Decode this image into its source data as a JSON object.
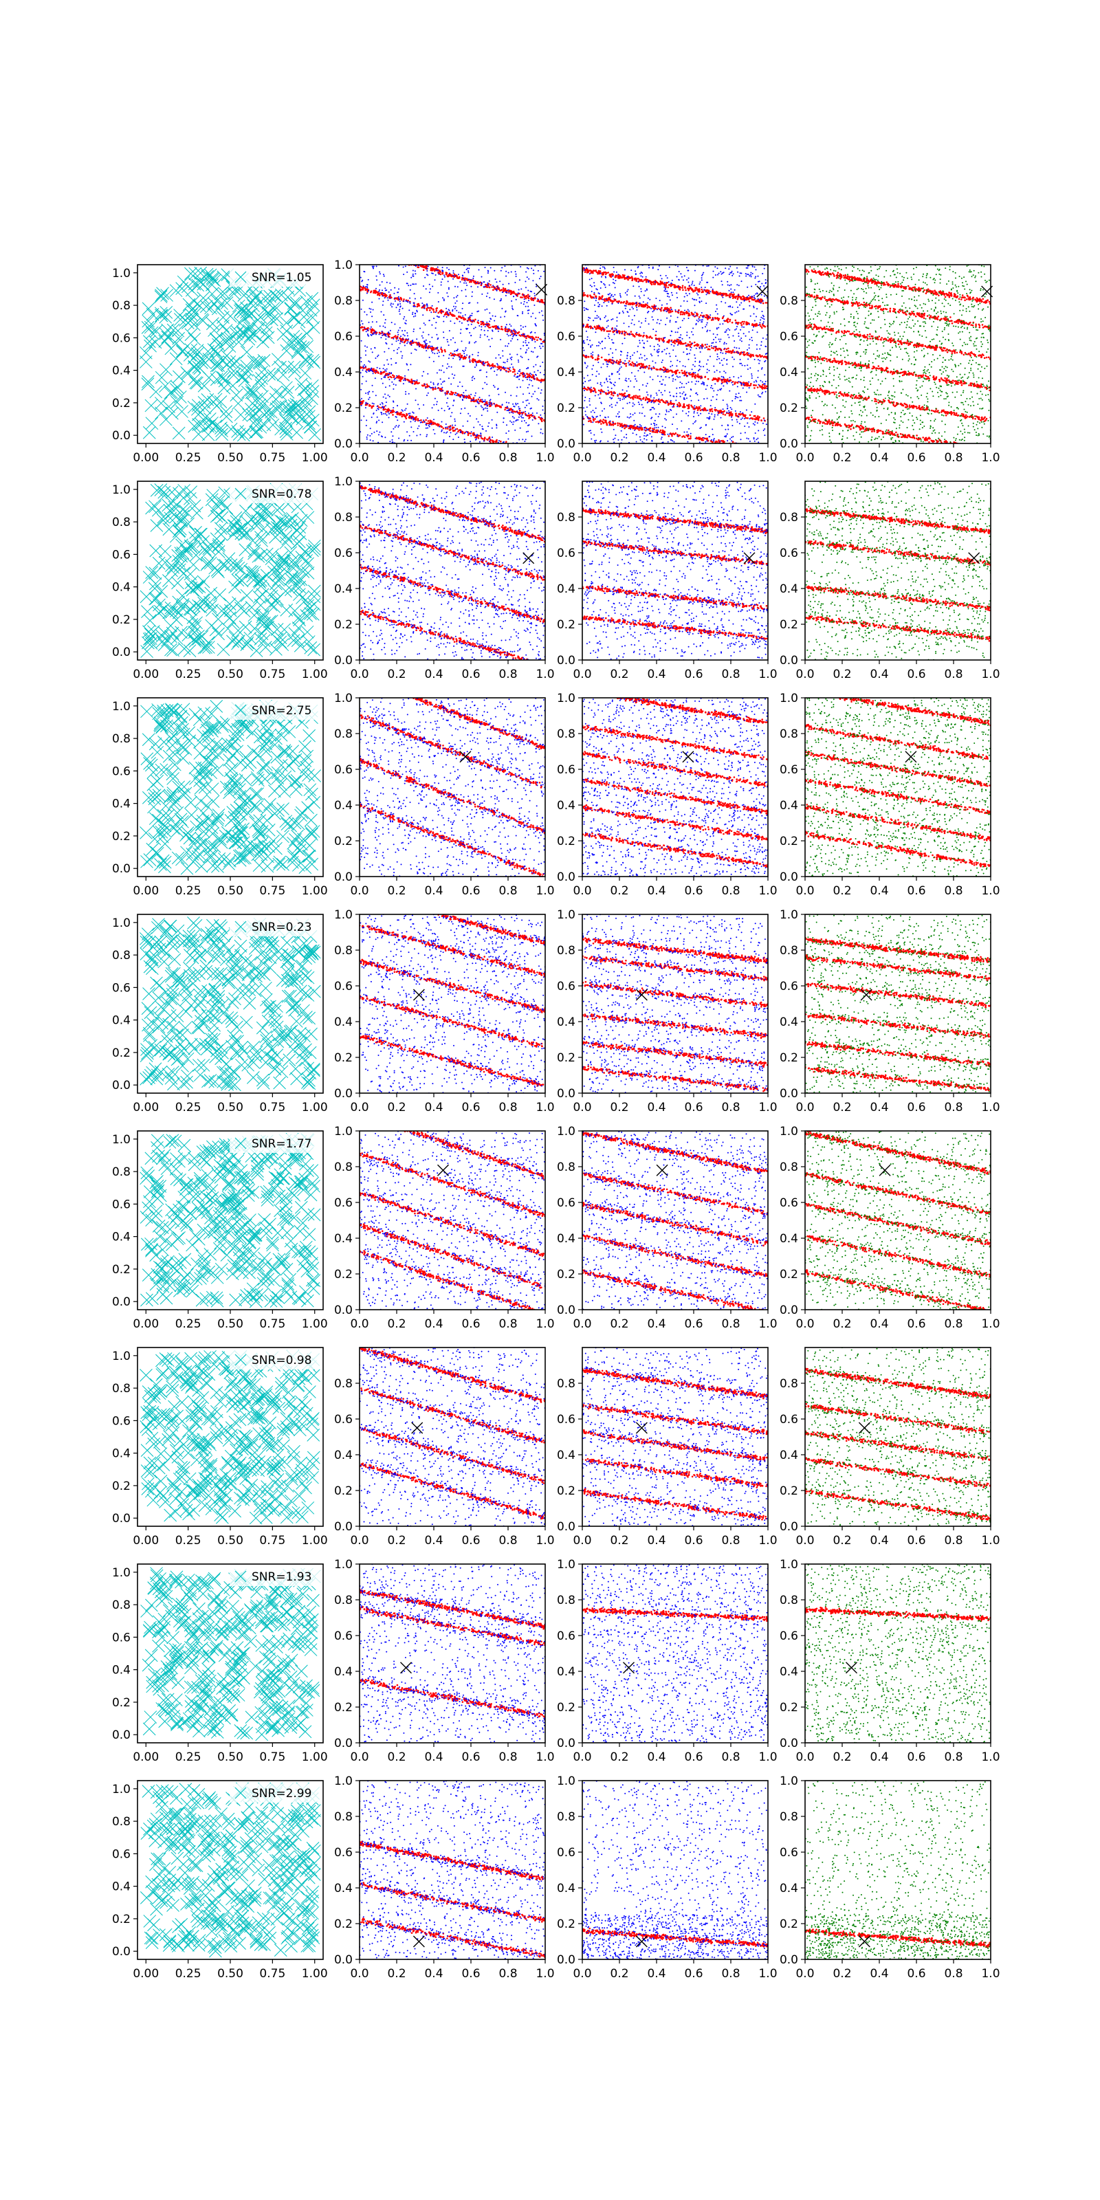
{
  "figure": {
    "layout": {
      "rows": 8,
      "cols": 4
    },
    "colors": {
      "candidates": "#00bfbf",
      "signal": "#ff0000",
      "noise_blue": "#0000ff",
      "noise_green": "#008000",
      "marker": "#000000"
    }
  },
  "chart_data": [
    {
      "type": "scatter",
      "column": "candidates",
      "legend": "SNR=1.05",
      "xlim": [
        -0.05,
        1.05
      ],
      "ylim": [
        -0.05,
        1.05
      ],
      "xticks": [
        "0.00",
        "0.25",
        "0.50",
        "0.75",
        "1.00"
      ],
      "yticks": [
        "0.0",
        "0.2",
        "0.4",
        "0.6",
        "0.8",
        "1.0"
      ],
      "marker": "x",
      "approx_point_count": 400
    },
    {
      "type": "scatter",
      "column": "signal-vs-noise",
      "noise_color": "blue",
      "xlim": [
        0,
        1
      ],
      "ylim": [
        0,
        1
      ],
      "xticks": [
        "0.0",
        "0.2",
        "0.4",
        "0.6",
        "0.8",
        "1.0"
      ],
      "yticks": [
        "0.0",
        "0.2",
        "0.4",
        "0.6",
        "0.8",
        "1.0"
      ],
      "truth": [
        0.98,
        0.86
      ],
      "slope": -0.3,
      "bands": [
        0.94,
        0.72,
        0.5,
        0.28,
        0.08
      ],
      "noise": "uniform+bands"
    },
    {
      "type": "scatter",
      "column": "signal-vs-noise",
      "noise_color": "blue",
      "xlim": [
        0,
        1
      ],
      "ylim": [
        0,
        1
      ],
      "xticks": [
        "0.0",
        "0.2",
        "0.4",
        "0.6",
        "0.8",
        "1.0"
      ],
      "yticks": [
        "0.0",
        "0.2",
        "0.4",
        "0.6",
        "0.8"
      ],
      "truth": [
        0.97,
        0.85
      ],
      "slope": -0.18,
      "bands": [
        0.88,
        0.74,
        0.57,
        0.4,
        0.22,
        0.05
      ],
      "noise": "uniform"
    },
    {
      "type": "scatter",
      "column": "signal-vs-noise",
      "noise_color": "green",
      "xlim": [
        0,
        1
      ],
      "ylim": [
        0,
        1
      ],
      "xticks": [
        "0.0",
        "0.2",
        "0.4",
        "0.6",
        "0.8",
        "1.0"
      ],
      "yticks": [
        "0.0",
        "0.2",
        "0.4",
        "0.6",
        "0.8"
      ],
      "truth": [
        0.98,
        0.85
      ],
      "slope": -0.18,
      "bands": [
        0.88,
        0.74,
        0.57,
        0.4,
        0.22,
        0.05
      ],
      "noise": "uniform"
    },
    {
      "type": "scatter",
      "column": "candidates",
      "legend": "SNR=0.78",
      "xlim": [
        -0.05,
        1.05
      ],
      "ylim": [
        -0.05,
        1.05
      ],
      "xticks": [
        "0.00",
        "0.25",
        "0.50",
        "0.75",
        "1.00"
      ],
      "yticks": [
        "0.0",
        "0.2",
        "0.4",
        "0.6",
        "0.8",
        "1.0"
      ],
      "marker": "x",
      "approx_point_count": 400
    },
    {
      "type": "scatter",
      "column": "signal-vs-noise",
      "noise_color": "blue",
      "xlim": [
        0,
        1
      ],
      "ylim": [
        0,
        1
      ],
      "xticks": [
        "0.0",
        "0.2",
        "0.4",
        "0.6",
        "0.8",
        "1.0"
      ],
      "yticks": [
        "0.0",
        "0.2",
        "0.4",
        "0.6",
        "0.8",
        "1.0"
      ],
      "truth": [
        0.91,
        0.57
      ],
      "slope": -0.3,
      "bands": [
        0.82,
        0.6,
        0.37,
        0.12
      ],
      "noise": "uniform+bands"
    },
    {
      "type": "scatter",
      "column": "signal-vs-noise",
      "noise_color": "blue",
      "xlim": [
        0,
        1
      ],
      "ylim": [
        0,
        1
      ],
      "xticks": [
        "0.0",
        "0.2",
        "0.4",
        "0.6",
        "0.8",
        "1.0"
      ],
      "yticks": [
        "0.0",
        "0.2",
        "0.4",
        "0.6",
        "0.8"
      ],
      "truth": [
        0.9,
        0.57
      ],
      "slope": -0.12,
      "bands": [
        0.78,
        0.6,
        0.35,
        0.18
      ],
      "noise": "uniform+bands"
    },
    {
      "type": "scatter",
      "column": "signal-vs-noise",
      "noise_color": "green",
      "xlim": [
        0,
        1
      ],
      "ylim": [
        0,
        1
      ],
      "xticks": [
        "0.0",
        "0.2",
        "0.4",
        "0.6",
        "0.8",
        "1.0"
      ],
      "yticks": [
        "0.0",
        "0.2",
        "0.4",
        "0.6",
        "0.8"
      ],
      "truth": [
        0.91,
        0.57
      ],
      "slope": -0.12,
      "bands": [
        0.78,
        0.6,
        0.35,
        0.18
      ],
      "noise": "uniform+bands"
    },
    {
      "type": "scatter",
      "column": "candidates",
      "legend": "SNR=2.75",
      "xlim": [
        -0.05,
        1.05
      ],
      "ylim": [
        -0.05,
        1.05
      ],
      "xticks": [
        "0.00",
        "0.25",
        "0.50",
        "0.75",
        "1.00"
      ],
      "yticks": [
        "0.0",
        "0.2",
        "0.4",
        "0.6",
        "0.8",
        "1.0"
      ],
      "marker": "x",
      "approx_point_count": 400
    },
    {
      "type": "scatter",
      "column": "signal-vs-noise",
      "noise_color": "blue",
      "xlim": [
        0,
        1
      ],
      "ylim": [
        0,
        1
      ],
      "xticks": [
        "0.0",
        "0.2",
        "0.4",
        "0.6",
        "0.8",
        "1.0"
      ],
      "yticks": [
        "0.0",
        "0.2",
        "0.4",
        "0.6",
        "0.8",
        "1.0"
      ],
      "truth": [
        0.57,
        0.67
      ],
      "slope": -0.4,
      "bands": [
        0.92,
        0.7,
        0.45,
        0.2
      ],
      "noise": "uniform+bands"
    },
    {
      "type": "scatter",
      "column": "signal-vs-noise",
      "noise_color": "blue",
      "xlim": [
        0,
        1
      ],
      "ylim": [
        0,
        1
      ],
      "xticks": [
        "0.0",
        "0.2",
        "0.4",
        "0.6",
        "0.8",
        "1.0"
      ],
      "yticks": [
        "0.0",
        "0.2",
        "0.4",
        "0.6",
        "0.8",
        "1.0"
      ],
      "truth": [
        0.57,
        0.67
      ],
      "slope": -0.18,
      "bands": [
        0.95,
        0.75,
        0.6,
        0.45,
        0.3,
        0.15
      ],
      "noise": "uniform"
    },
    {
      "type": "scatter",
      "column": "signal-vs-noise",
      "noise_color": "green",
      "xlim": [
        0,
        1
      ],
      "ylim": [
        0,
        1
      ],
      "xticks": [
        "0.0",
        "0.2",
        "0.4",
        "0.6",
        "0.8",
        "1.0"
      ],
      "yticks": [
        "0.0",
        "0.2",
        "0.4",
        "0.6",
        "0.8",
        "1.0"
      ],
      "truth": [
        0.57,
        0.67
      ],
      "slope": -0.18,
      "bands": [
        0.95,
        0.75,
        0.6,
        0.45,
        0.3,
        0.15
      ],
      "noise": "uniform"
    },
    {
      "type": "scatter",
      "column": "candidates",
      "legend": "SNR=0.23",
      "xlim": [
        -0.05,
        1.05
      ],
      "ylim": [
        -0.05,
        1.05
      ],
      "xticks": [
        "0.00",
        "0.25",
        "0.50",
        "0.75",
        "1.00"
      ],
      "yticks": [
        "0.0",
        "0.2",
        "0.4",
        "0.6",
        "0.8",
        "1.0"
      ],
      "marker": "x",
      "approx_point_count": 400
    },
    {
      "type": "scatter",
      "column": "signal-vs-noise",
      "noise_color": "blue",
      "xlim": [
        0,
        1
      ],
      "ylim": [
        0,
        1
      ],
      "xticks": [
        "0.0",
        "0.2",
        "0.4",
        "0.6",
        "0.8",
        "1.0"
      ],
      "yticks": [
        "0.0",
        "0.2",
        "0.4",
        "0.6",
        "0.8",
        "1.0"
      ],
      "truth": [
        0.32,
        0.55
      ],
      "slope": -0.28,
      "bands": [
        0.98,
        0.8,
        0.6,
        0.4,
        0.18
      ],
      "noise": "uniform+bands"
    },
    {
      "type": "scatter",
      "column": "signal-vs-noise",
      "noise_color": "blue",
      "xlim": [
        0,
        1
      ],
      "ylim": [
        0,
        1
      ],
      "xticks": [
        "0.0",
        "0.2",
        "0.4",
        "0.6",
        "0.8",
        "1.0"
      ],
      "yticks": [
        "0.0",
        "0.2",
        "0.4",
        "0.6",
        "0.8",
        "1.0"
      ],
      "truth": [
        0.32,
        0.55
      ],
      "slope": -0.12,
      "bands": [
        0.8,
        0.7,
        0.55,
        0.38,
        0.22,
        0.08
      ],
      "noise": "uniform+bands"
    },
    {
      "type": "scatter",
      "column": "signal-vs-noise",
      "noise_color": "green",
      "xlim": [
        0,
        1
      ],
      "ylim": [
        0,
        1
      ],
      "xticks": [
        "0.0",
        "0.2",
        "0.4",
        "0.6",
        "0.8",
        "1.0"
      ],
      "yticks": [
        "0.0",
        "0.2",
        "0.4",
        "0.6",
        "0.8",
        "1.0"
      ],
      "truth": [
        0.33,
        0.55
      ],
      "slope": -0.12,
      "bands": [
        0.8,
        0.7,
        0.55,
        0.38,
        0.22,
        0.08
      ],
      "noise": "uniform+bands"
    },
    {
      "type": "scatter",
      "column": "candidates",
      "legend": "SNR=1.77",
      "xlim": [
        -0.05,
        1.05
      ],
      "ylim": [
        -0.05,
        1.05
      ],
      "xticks": [
        "0.00",
        "0.25",
        "0.50",
        "0.75",
        "1.00"
      ],
      "yticks": [
        "0.0",
        "0.2",
        "0.4",
        "0.6",
        "0.8",
        "1.0"
      ],
      "marker": "x",
      "approx_point_count": 400
    },
    {
      "type": "scatter",
      "column": "signal-vs-noise",
      "noise_color": "blue",
      "xlim": [
        0,
        1
      ],
      "ylim": [
        0,
        1
      ],
      "xticks": [
        "0.0",
        "0.2",
        "0.4",
        "0.6",
        "0.8",
        "1.0"
      ],
      "yticks": [
        "0.0",
        "0.2",
        "0.4",
        "0.6",
        "0.8",
        "1.0"
      ],
      "truth": [
        0.45,
        0.78
      ],
      "slope": -0.35,
      "bands": [
        0.92,
        0.7,
        0.48,
        0.3,
        0.15
      ],
      "noise": "uniform+bands"
    },
    {
      "type": "scatter",
      "column": "signal-vs-noise",
      "noise_color": "blue",
      "xlim": [
        0,
        1
      ],
      "ylim": [
        0,
        1
      ],
      "xticks": [
        "0.0",
        "0.2",
        "0.4",
        "0.6",
        "0.8",
        "1.0"
      ],
      "yticks": [
        "0.0",
        "0.2",
        "0.4",
        "0.6",
        "0.8",
        "1.0"
      ],
      "truth": [
        0.43,
        0.78
      ],
      "slope": -0.22,
      "bands": [
        0.88,
        0.65,
        0.48,
        0.3,
        0.1
      ],
      "noise": "uniform+bands"
    },
    {
      "type": "scatter",
      "column": "signal-vs-noise",
      "noise_color": "green",
      "xlim": [
        0,
        1
      ],
      "ylim": [
        0,
        1
      ],
      "xticks": [
        "0.0",
        "0.2",
        "0.4",
        "0.6",
        "0.8",
        "1.0"
      ],
      "yticks": [
        "0.0",
        "0.2",
        "0.4",
        "0.6",
        "0.8",
        "1.0"
      ],
      "truth": [
        0.43,
        0.78
      ],
      "slope": -0.22,
      "bands": [
        0.88,
        0.65,
        0.48,
        0.3,
        0.1
      ],
      "noise": "uniform+bands"
    },
    {
      "type": "scatter",
      "column": "candidates",
      "legend": "SNR=0.98",
      "xlim": [
        -0.05,
        1.05
      ],
      "ylim": [
        -0.05,
        1.05
      ],
      "xticks": [
        "0.00",
        "0.25",
        "0.50",
        "0.75",
        "1.00"
      ],
      "yticks": [
        "0.0",
        "0.2",
        "0.4",
        "0.6",
        "0.8",
        "1.0"
      ],
      "marker": "x",
      "approx_point_count": 400
    },
    {
      "type": "scatter",
      "column": "signal-vs-noise",
      "noise_color": "blue",
      "xlim": [
        0,
        1
      ],
      "ylim": [
        0,
        1
      ],
      "xticks": [
        "0.0",
        "0.2",
        "0.4",
        "0.6",
        "0.8",
        "1.0"
      ],
      "yticks": [
        "0.0",
        "0.2",
        "0.4",
        "0.6",
        "0.8"
      ],
      "truth": [
        0.31,
        0.55
      ],
      "slope": -0.3,
      "bands": [
        0.85,
        0.62,
        0.4,
        0.2
      ],
      "noise": "uniform+bands"
    },
    {
      "type": "scatter",
      "column": "signal-vs-noise",
      "noise_color": "blue",
      "xlim": [
        0,
        1
      ],
      "ylim": [
        0,
        1
      ],
      "xticks": [
        "0.0",
        "0.2",
        "0.4",
        "0.6",
        "0.8",
        "1.0"
      ],
      "yticks": [
        "0.0",
        "0.2",
        "0.4",
        "0.6",
        "0.8"
      ],
      "truth": [
        0.32,
        0.55
      ],
      "slope": -0.15,
      "bands": [
        0.8,
        0.6,
        0.45,
        0.3,
        0.12
      ],
      "noise": "uniform+bands"
    },
    {
      "type": "scatter",
      "column": "signal-vs-noise",
      "noise_color": "green",
      "xlim": [
        0,
        1
      ],
      "ylim": [
        0,
        1
      ],
      "xticks": [
        "0.0",
        "0.2",
        "0.4",
        "0.6",
        "0.8",
        "1.0"
      ],
      "yticks": [
        "0.0",
        "0.2",
        "0.4",
        "0.6",
        "0.8"
      ],
      "truth": [
        0.32,
        0.55
      ],
      "slope": -0.15,
      "bands": [
        0.8,
        0.6,
        0.45,
        0.3,
        0.12
      ],
      "noise": "uniform+bands"
    },
    {
      "type": "scatter",
      "column": "candidates",
      "legend": "SNR=1.93",
      "xlim": [
        -0.05,
        1.05
      ],
      "ylim": [
        -0.05,
        1.05
      ],
      "xticks": [
        "0.00",
        "0.25",
        "0.50",
        "0.75",
        "1.00"
      ],
      "yticks": [
        "0.0",
        "0.2",
        "0.4",
        "0.6",
        "0.8",
        "1.0"
      ],
      "marker": "x",
      "approx_point_count": 400
    },
    {
      "type": "scatter",
      "column": "signal-vs-noise",
      "noise_color": "blue",
      "xlim": [
        0,
        1
      ],
      "ylim": [
        0,
        1
      ],
      "xticks": [
        "0.0",
        "0.2",
        "0.4",
        "0.6",
        "0.8",
        "1.0"
      ],
      "yticks": [
        "0.0",
        "0.2",
        "0.4",
        "0.6",
        "0.8",
        "1.0"
      ],
      "truth": [
        0.25,
        0.42
      ],
      "slope": -0.2,
      "bands": [
        0.75,
        0.65,
        0.25
      ],
      "noise": "uniform+bands"
    },
    {
      "type": "scatter",
      "column": "signal-vs-noise",
      "noise_color": "blue",
      "xlim": [
        0,
        1
      ],
      "ylim": [
        0,
        1
      ],
      "xticks": [
        "0.0",
        "0.2",
        "0.4",
        "0.6",
        "0.8",
        "1.0"
      ],
      "yticks": [
        "0.0",
        "0.2",
        "0.4",
        "0.6",
        "0.8",
        "1.0"
      ],
      "truth": [
        0.25,
        0.42
      ],
      "slope": -0.05,
      "bands": [
        0.72
      ],
      "noise": "uniform"
    },
    {
      "type": "scatter",
      "column": "signal-vs-noise",
      "noise_color": "green",
      "xlim": [
        0,
        1
      ],
      "ylim": [
        0,
        1
      ],
      "xticks": [
        "0.0",
        "0.2",
        "0.4",
        "0.6",
        "0.8",
        "1.0"
      ],
      "yticks": [
        "0.0",
        "0.2",
        "0.4",
        "0.6",
        "0.8",
        "1.0"
      ],
      "truth": [
        0.25,
        0.42
      ],
      "slope": -0.05,
      "bands": [
        0.72
      ],
      "noise": "uniform"
    },
    {
      "type": "scatter",
      "column": "candidates",
      "legend": "SNR=2.99",
      "xlim": [
        -0.05,
        1.05
      ],
      "ylim": [
        -0.05,
        1.05
      ],
      "xticks": [
        "0.00",
        "0.25",
        "0.50",
        "0.75",
        "1.00"
      ],
      "yticks": [
        "0.0",
        "0.2",
        "0.4",
        "0.6",
        "0.8",
        "1.0"
      ],
      "marker": "x",
      "approx_point_count": 400
    },
    {
      "type": "scatter",
      "column": "signal-vs-noise",
      "noise_color": "blue",
      "xlim": [
        0,
        1
      ],
      "ylim": [
        0,
        1
      ],
      "xticks": [
        "0.0",
        "0.2",
        "0.4",
        "0.6",
        "0.8",
        "1.0"
      ],
      "yticks": [
        "0.0",
        "0.2",
        "0.4",
        "0.6",
        "0.8",
        "1.0"
      ],
      "truth": [
        0.32,
        0.1
      ],
      "slope": -0.2,
      "bands": [
        0.55,
        0.32,
        0.12
      ],
      "noise": "uniform+bands"
    },
    {
      "type": "scatter",
      "column": "signal-vs-noise",
      "noise_color": "blue",
      "xlim": [
        0,
        1
      ],
      "ylim": [
        0,
        1
      ],
      "xticks": [
        "0.0",
        "0.2",
        "0.4",
        "0.6",
        "0.8",
        "1.0"
      ],
      "yticks": [
        "0.0",
        "0.2",
        "0.4",
        "0.6",
        "0.8",
        "1.0"
      ],
      "truth": [
        0.32,
        0.1
      ],
      "slope": -0.08,
      "bands": [
        0.12
      ],
      "noise": "uniform+bottom"
    },
    {
      "type": "scatter",
      "column": "signal-vs-noise",
      "noise_color": "green",
      "xlim": [
        0,
        1
      ],
      "ylim": [
        0,
        1
      ],
      "xticks": [
        "0.0",
        "0.2",
        "0.4",
        "0.6",
        "0.8",
        "1.0"
      ],
      "yticks": [
        "0.0",
        "0.2",
        "0.4",
        "0.6",
        "0.8",
        "1.0"
      ],
      "truth": [
        0.32,
        0.1
      ],
      "slope": -0.08,
      "bands": [
        0.12
      ],
      "noise": "uniform+bottom"
    }
  ]
}
